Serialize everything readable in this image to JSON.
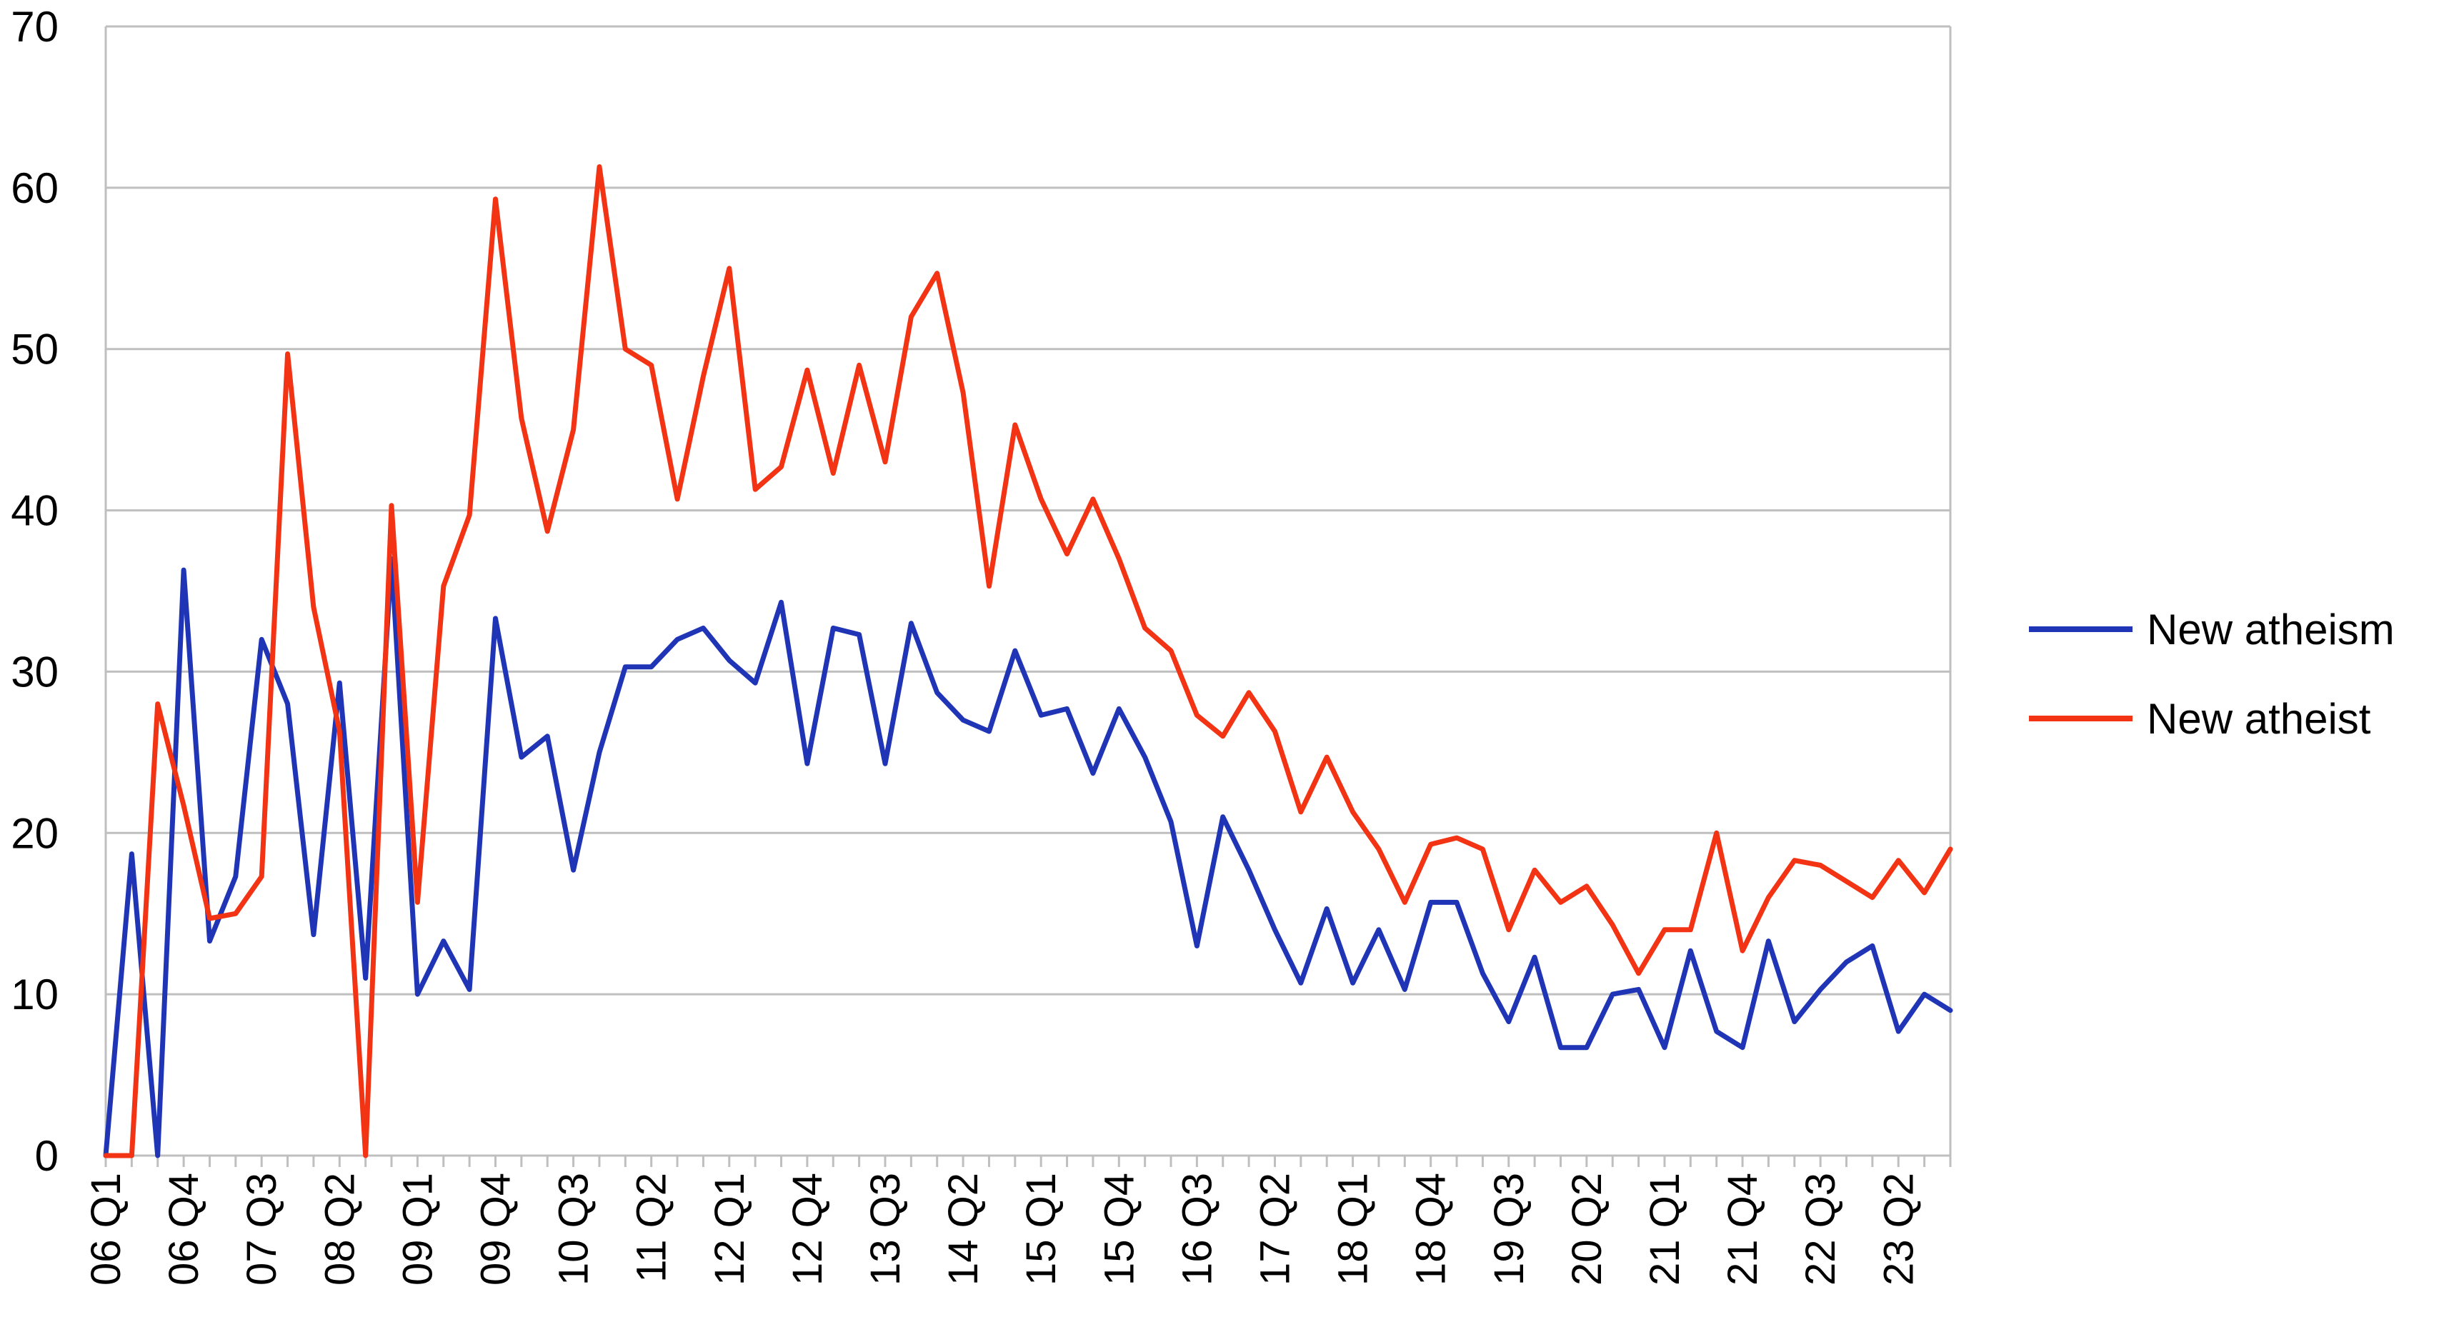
{
  "chart_data": {
    "type": "line",
    "title": "",
    "xlabel": "",
    "ylabel": "",
    "ylim": [
      0,
      70
    ],
    "yticks": [
      0,
      10,
      20,
      30,
      40,
      50,
      60,
      70
    ],
    "grid": true,
    "legend_position": "right",
    "x": [
      "06 Q1",
      "06 Q2",
      "06 Q3",
      "06 Q4",
      "07 Q1",
      "07 Q2",
      "07 Q3",
      "07 Q4",
      "08 Q1",
      "08 Q2",
      "08 Q3",
      "08 Q4",
      "09 Q1",
      "09 Q2",
      "09 Q3",
      "09 Q4",
      "10 Q1",
      "10 Q2",
      "10 Q3",
      "10 Q4",
      "11 Q1",
      "11 Q2",
      "11 Q3",
      "11 Q4",
      "12 Q1",
      "12 Q2",
      "12 Q3",
      "12 Q4",
      "13 Q1",
      "13 Q2",
      "13 Q3",
      "13 Q4",
      "14 Q1",
      "14 Q2",
      "14 Q3",
      "14 Q4",
      "15 Q1",
      "15 Q2",
      "15 Q3",
      "15 Q4",
      "16 Q1",
      "16 Q2",
      "16 Q3",
      "16 Q4",
      "17 Q1",
      "17 Q2",
      "17 Q3",
      "17 Q4",
      "18 Q1",
      "18 Q2",
      "18 Q3",
      "18 Q4",
      "19 Q1",
      "19 Q2",
      "19 Q3",
      "19 Q4",
      "20 Q1",
      "20 Q2",
      "20 Q3",
      "20 Q4",
      "21 Q1",
      "21 Q2",
      "21 Q3",
      "21 Q4",
      "22 Q1",
      "22 Q2",
      "22 Q3",
      "22 Q4",
      "23 Q1",
      "23 Q2",
      "23 Q3",
      "23 Q4"
    ],
    "xtick_labels": [
      "06 Q1",
      "06 Q4",
      "07 Q3",
      "08 Q2",
      "09 Q1",
      "09 Q4",
      "10 Q3",
      "11 Q2",
      "12 Q1",
      "12 Q4",
      "13 Q3",
      "14 Q2",
      "15 Q1",
      "15 Q4",
      "16 Q3",
      "17 Q2",
      "18 Q1",
      "18 Q4",
      "19 Q3",
      "20 Q2",
      "21 Q1",
      "21 Q4",
      "22 Q3",
      "23 Q2"
    ],
    "series": [
      {
        "name": "New atheism",
        "color": "#1f35b5",
        "values": [
          0,
          18.7,
          0,
          36.3,
          13.3,
          17.3,
          32,
          28,
          13.7,
          29.3,
          11,
          37,
          10,
          13.3,
          10.3,
          33.3,
          24.7,
          26,
          17.7,
          25,
          30.3,
          30.3,
          32,
          32.7,
          30.7,
          29.3,
          34.3,
          24.3,
          32.7,
          32.3,
          24.3,
          33,
          28.7,
          27,
          26.3,
          31.3,
          27.3,
          27.7,
          23.7,
          27.7,
          24.7,
          20.7,
          13,
          21,
          17.7,
          14,
          10.7,
          15.3,
          10.7,
          14,
          10.3,
          15.7,
          15.7,
          11.3,
          8.3,
          12.3,
          6.7,
          6.7,
          10,
          10.3,
          6.7,
          12.7,
          7.7,
          6.7,
          13.3,
          8.3,
          10.3,
          12,
          13,
          7.7,
          10,
          9
        ]
      },
      {
        "name": "New atheist",
        "color": "#f23314",
        "values": [
          0,
          0,
          28,
          21.7,
          14.7,
          15,
          17.3,
          49.7,
          34,
          26.3,
          0,
          40.3,
          15.7,
          35.3,
          39.7,
          59.3,
          45.7,
          38.7,
          45,
          61.3,
          50,
          49,
          40.7,
          48.3,
          55,
          41.3,
          42.7,
          48.7,
          42.3,
          49,
          43,
          52,
          54.7,
          47.3,
          35.3,
          45.3,
          40.7,
          37.3,
          40.7,
          37,
          32.7,
          31.3,
          27.3,
          26,
          28.7,
          26.3,
          21.3,
          24.7,
          21.3,
          19,
          15.7,
          19.3,
          19.7,
          19,
          14,
          17.7,
          15.7,
          16.7,
          14.3,
          11.3,
          14,
          14,
          20,
          12.7,
          16,
          18.3,
          18,
          17,
          16,
          18.3,
          16.3,
          19
        ]
      }
    ]
  }
}
